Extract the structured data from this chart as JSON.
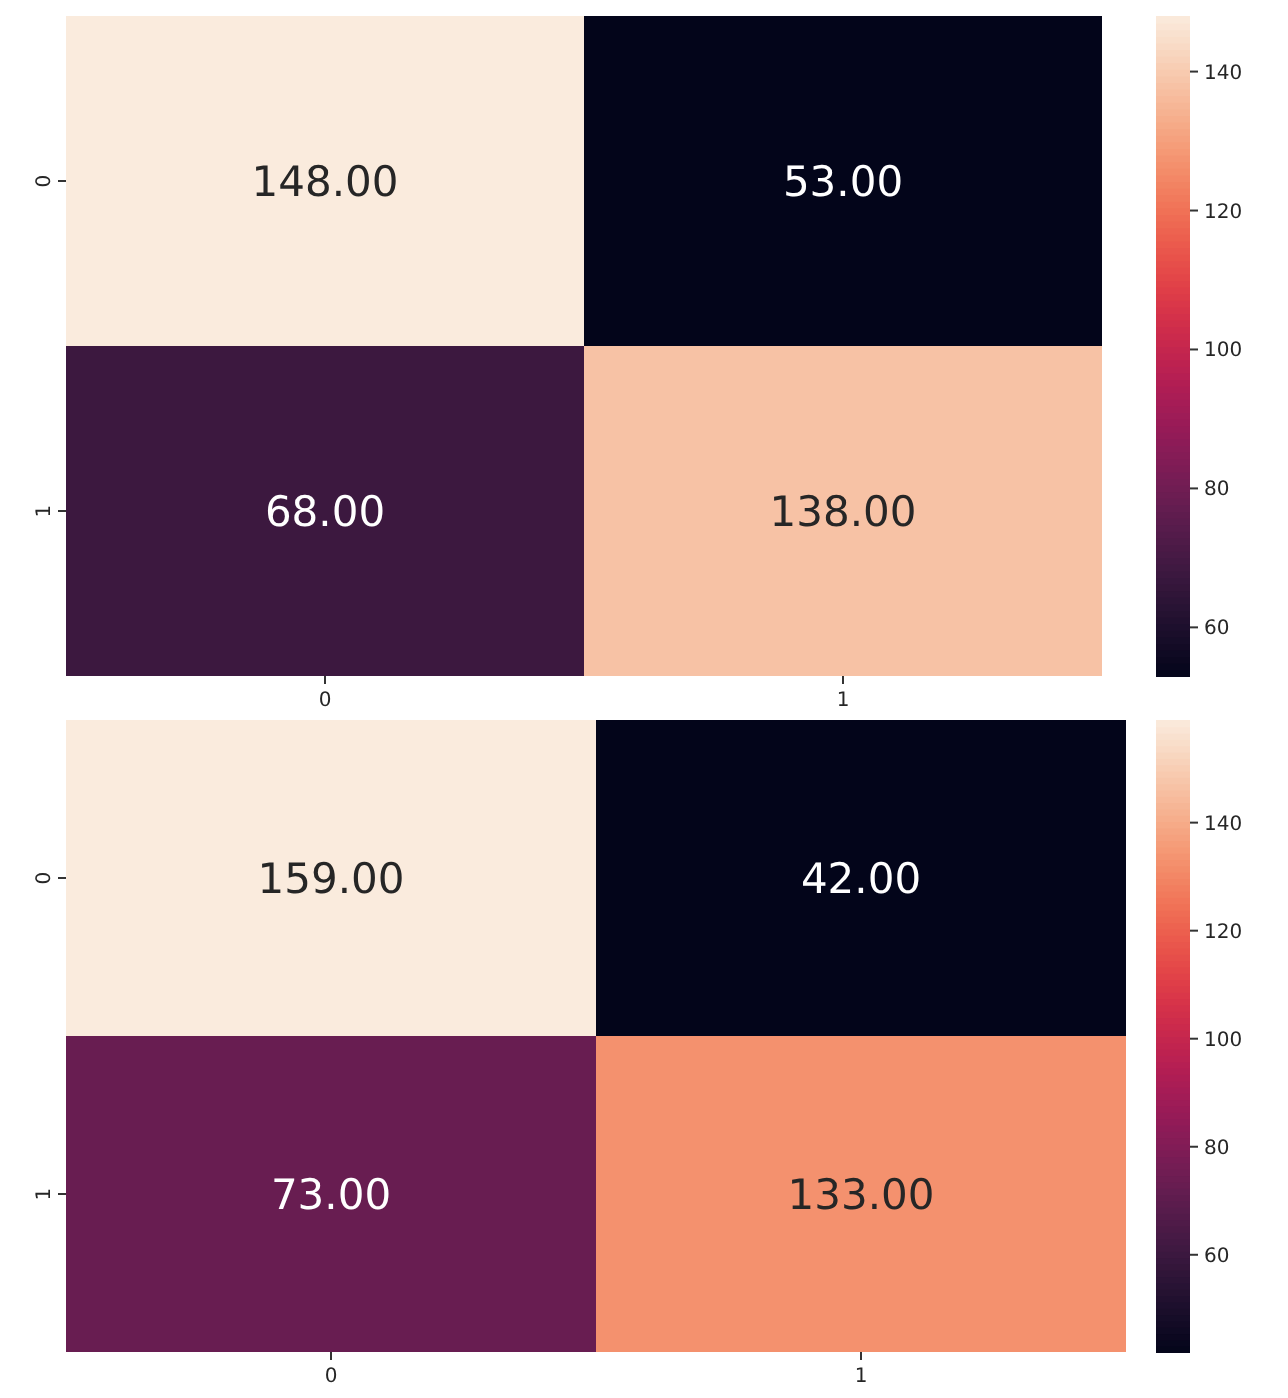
{
  "chart_data": [
    {
      "type": "heatmap",
      "categories": [
        "0",
        "1"
      ],
      "y_categories": [
        "0",
        "1"
      ],
      "cells": [
        [
          148,
          53
        ],
        [
          68,
          138
        ]
      ],
      "cell_labels": [
        [
          "148.00",
          "53.00"
        ],
        [
          "68.00",
          "138.00"
        ]
      ],
      "clim": [
        53,
        148
      ],
      "cticks": [
        60,
        80,
        100,
        120,
        140
      ]
    },
    {
      "type": "heatmap",
      "categories": [
        "0",
        "1"
      ],
      "y_categories": [
        "0",
        "1"
      ],
      "cells": [
        [
          159,
          42
        ],
        [
          73,
          133
        ]
      ],
      "cell_labels": [
        [
          "159.00",
          "42.00"
        ],
        [
          "73.00",
          "133.00"
        ]
      ],
      "clim": [
        42,
        159
      ],
      "cticks": [
        60,
        80,
        100,
        120,
        140
      ]
    }
  ]
}
